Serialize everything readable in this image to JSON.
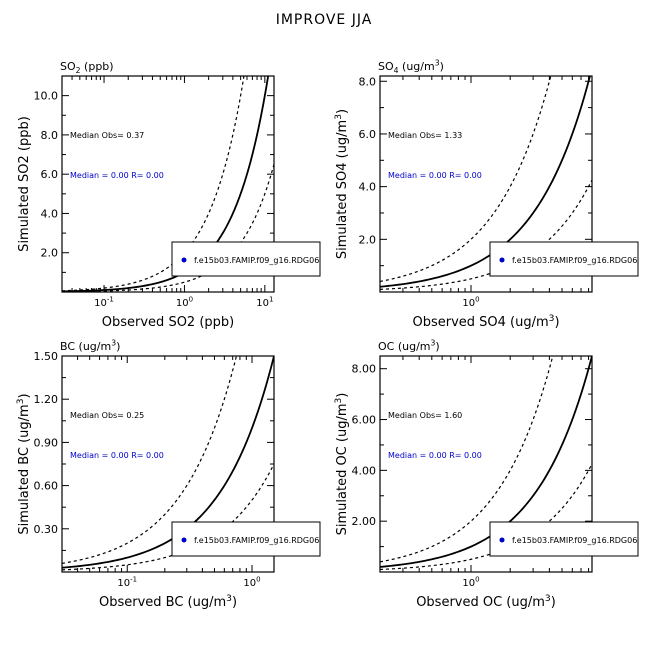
{
  "figure": {
    "title": "IMPROVE JJA"
  },
  "chart_data": [
    {
      "type": "scatter",
      "title": "SO$2$ (ppb)",
      "xlabel": "Observed SO2 (ppb)",
      "ylabel": "Simulated SO2 (ppb)",
      "x_scale": "log",
      "y_scale": "linear",
      "xlim": [
        0.03,
        13
      ],
      "ylim": [
        0,
        11
      ],
      "x_ticks": [
        0.1,
        1,
        10
      ],
      "x_tick_labels": [
        "10-1",
        "100",
        "101"
      ],
      "y_ticks": [
        2,
        4,
        6,
        8,
        10
      ],
      "y_tick_labels": [
        "2.0",
        "4.0",
        "6.0",
        "8.0",
        "10.0"
      ],
      "median_obs": "Median Obs= 0.37",
      "median_model": "Median = 0.00  R= 0.00",
      "legend": {
        "label": "f.e15b03.FAMIP.f09_g16.RDG06",
        "position": "bottom-right"
      },
      "series": [],
      "lines": [
        "1:1",
        "2:1",
        "1:2"
      ]
    },
    {
      "type": "scatter",
      "title": "SO$4$ (ug/m^3)",
      "xlabel": "Observed SO4 (ug/m^3)",
      "ylabel": "Simulated SO4 (ug/m^3)",
      "x_scale": "log",
      "y_scale": "linear",
      "xlim": [
        0.2,
        8.5
      ],
      "ylim": [
        0,
        8.2
      ],
      "x_ticks": [
        1
      ],
      "x_tick_labels": [
        "100"
      ],
      "y_ticks": [
        2,
        4,
        6,
        8
      ],
      "y_tick_labels": [
        "2.0",
        "4.0",
        "6.0",
        "8.0"
      ],
      "median_obs": "Median Obs= 1.33",
      "median_model": "Median = 0.00  R= 0.00",
      "legend": {
        "label": "f.e15b03.FAMIP.f09_g16.RDG06",
        "position": "bottom-right"
      },
      "series": [],
      "lines": [
        "1:1",
        "2:1",
        "1:2"
      ]
    },
    {
      "type": "scatter",
      "title": "BC (ug/m^3)",
      "xlabel": "Observed BC (ug/m^3)",
      "ylabel": "Simulated BC (ug/m^3)",
      "x_scale": "log",
      "y_scale": "linear",
      "xlim": [
        0.03,
        1.5
      ],
      "ylim": [
        0,
        1.5
      ],
      "x_ticks": [
        0.1,
        1
      ],
      "x_tick_labels": [
        "10-1",
        "100"
      ],
      "y_ticks": [
        0.3,
        0.6,
        0.9,
        1.2,
        1.5
      ],
      "y_tick_labels": [
        "0.30",
        "0.60",
        "0.90",
        "1.20",
        "1.50"
      ],
      "median_obs": "Median Obs= 0.25",
      "median_model": "Median = 0.00  R= 0.00",
      "legend": {
        "label": "f.e15b03.FAMIP.f09_g16.RDG06",
        "position": "bottom-right"
      },
      "series": [],
      "lines": [
        "1:1",
        "2:1",
        "1:2"
      ]
    },
    {
      "type": "scatter",
      "title": "OC (ug/m^3)",
      "xlabel": "Observed OC (ug/m^3)",
      "ylabel": "Simulated OC (ug/m^3)",
      "x_scale": "log",
      "y_scale": "linear",
      "xlim": [
        0.2,
        8.5
      ],
      "ylim": [
        0,
        8.5
      ],
      "x_ticks": [
        1
      ],
      "x_tick_labels": [
        "100"
      ],
      "y_ticks": [
        2,
        4,
        6,
        8
      ],
      "y_tick_labels": [
        "2.00",
        "4.00",
        "6.00",
        "8.00"
      ],
      "median_obs": "Median Obs= 1.60",
      "median_model": "Median = 0.00  R= 0.00",
      "legend": {
        "label": "f.e15b03.FAMIP.f09_g16.RDG06",
        "position": "bottom-right"
      },
      "series": [],
      "lines": [
        "1:1",
        "2:1",
        "1:2"
      ]
    }
  ],
  "colors": {
    "axis": "#000000",
    "median_model_text": "#0000cc",
    "legend_marker": "#0000cc"
  }
}
